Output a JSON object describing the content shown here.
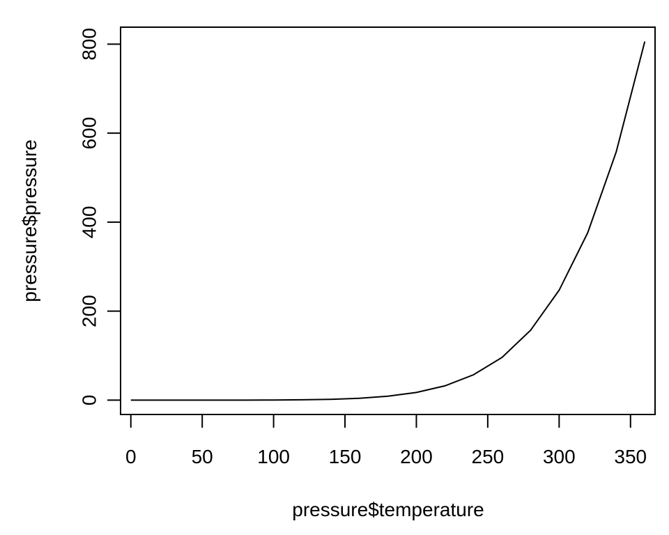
{
  "chart_data": {
    "type": "line",
    "title": "",
    "xlabel": "pressure$temperature",
    "ylabel": "pressure$pressure",
    "x": [
      0,
      20,
      40,
      60,
      80,
      100,
      120,
      140,
      160,
      180,
      200,
      220,
      240,
      260,
      280,
      300,
      320,
      340,
      360
    ],
    "series": [
      {
        "values": [
          0.0002,
          0.0012,
          0.006,
          0.03,
          0.09,
          0.27,
          0.75,
          1.85,
          4.2,
          8.8,
          17.3,
          32.1,
          57.0,
          96.0,
          157.0,
          247.0,
          376.0,
          558.0,
          806.0
        ]
      }
    ],
    "xlim": [
      -7.2,
      367.2
    ],
    "ylim": [
      -32.24,
      838.24
    ],
    "xticks": [
      "0",
      "50",
      "100",
      "150",
      "200",
      "250",
      "300",
      "350"
    ],
    "yticks": [
      "0",
      "200",
      "400",
      "600",
      "800"
    ],
    "grid": false,
    "line_color": "#000000"
  }
}
